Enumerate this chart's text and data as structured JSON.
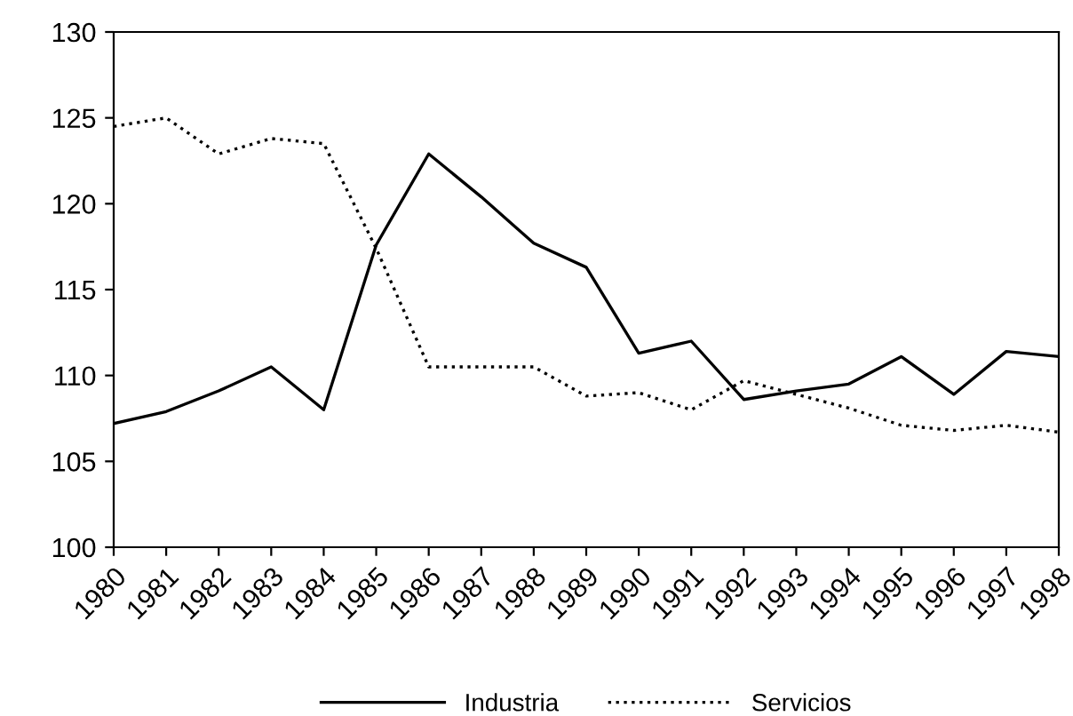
{
  "chart_data": {
    "type": "line",
    "x": [
      1980,
      1981,
      1982,
      1983,
      1984,
      1985,
      1986,
      1987,
      1988,
      1989,
      1990,
      1991,
      1992,
      1993,
      1994,
      1995,
      1996,
      1997,
      1998
    ],
    "series": [
      {
        "name": "Industria",
        "color": "#000000",
        "line_style": "solid",
        "values": [
          107.2,
          107.9,
          109.1,
          110.5,
          108.0,
          117.6,
          122.9,
          120.4,
          117.7,
          116.3,
          111.3,
          112.0,
          108.6,
          109.1,
          109.5,
          111.1,
          108.9,
          111.4,
          111.1
        ]
      },
      {
        "name": "Servicios",
        "color": "#000000",
        "line_style": "dotted",
        "values": [
          124.5,
          125.0,
          122.9,
          123.8,
          123.5,
          117.4,
          110.5,
          110.5,
          110.5,
          108.8,
          109.0,
          108.0,
          109.7,
          108.9,
          108.1,
          107.1,
          106.8,
          107.1,
          106.7
        ]
      }
    ],
    "xlim": [
      1980,
      1998
    ],
    "xticks": [
      1980,
      1981,
      1982,
      1983,
      1984,
      1985,
      1986,
      1987,
      1988,
      1989,
      1990,
      1991,
      1992,
      1993,
      1994,
      1995,
      1996,
      1997,
      1998
    ],
    "ylim": [
      100,
      130
    ],
    "yticks": [
      100,
      105,
      110,
      115,
      120,
      125,
      130
    ],
    "grid": false,
    "legend": "bottom",
    "marker": "none"
  }
}
